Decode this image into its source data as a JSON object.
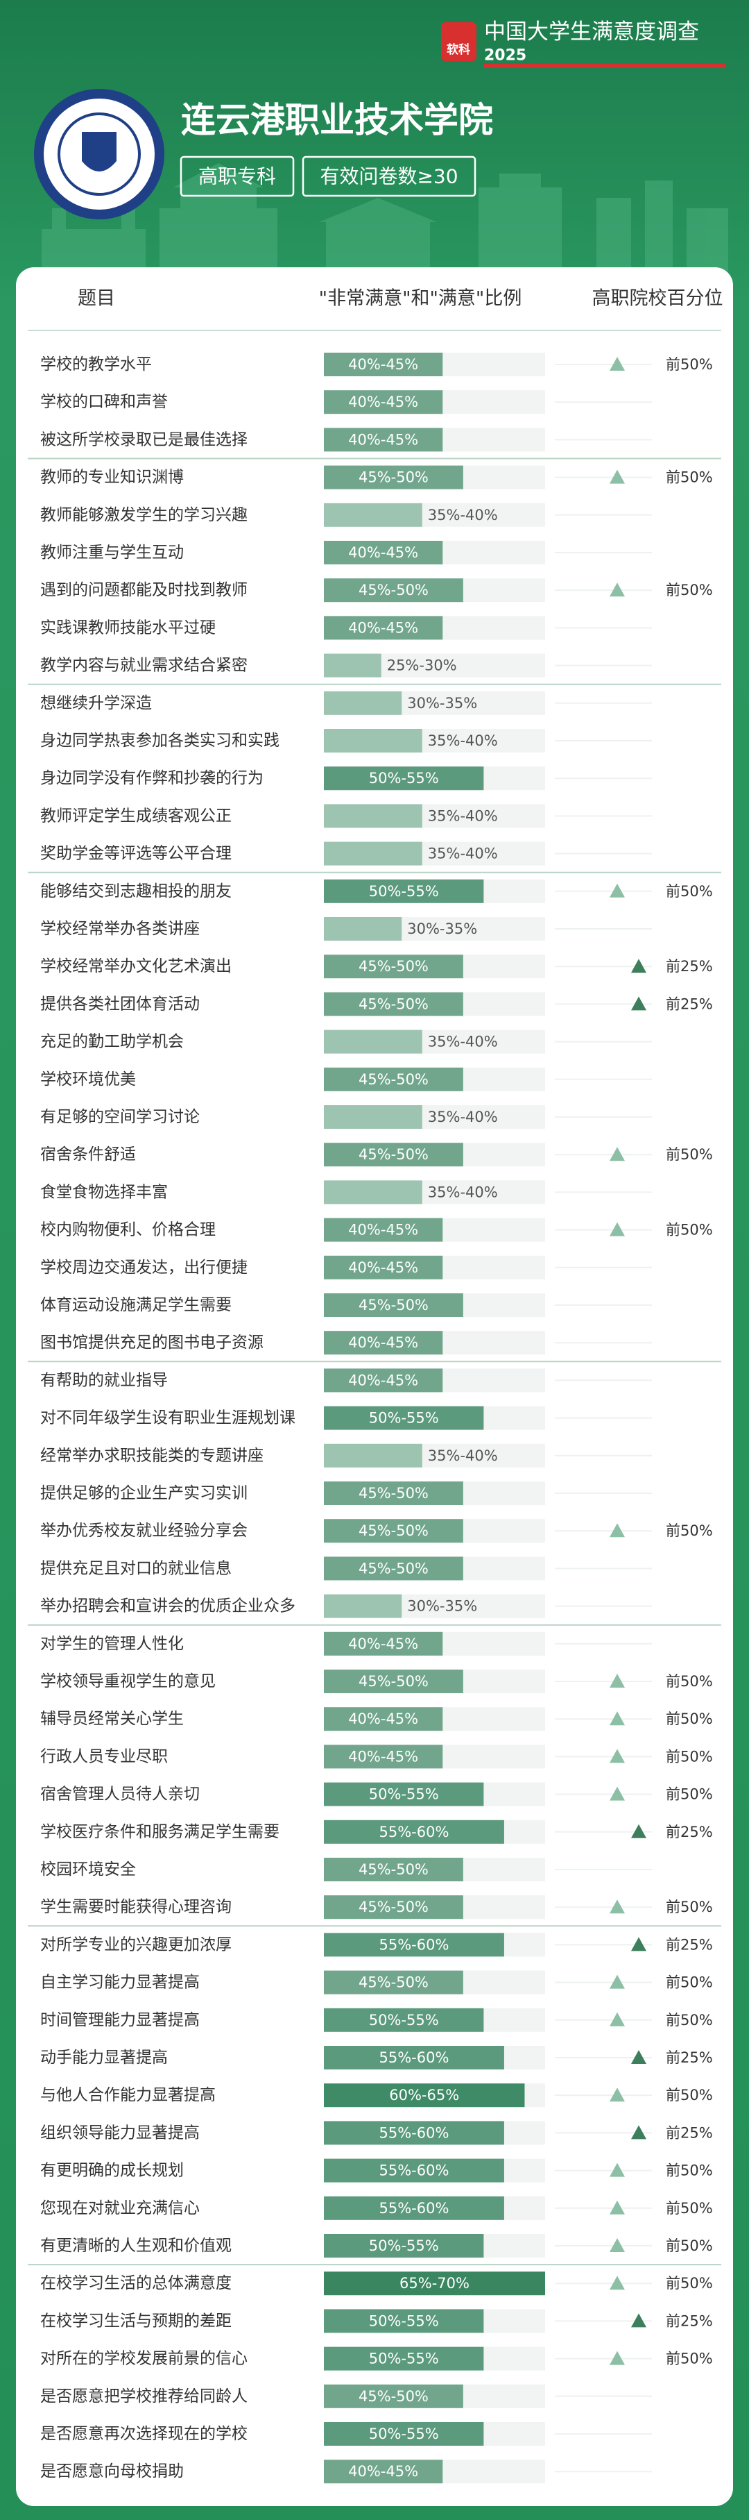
{
  "header": {
    "brand_icon": "软科",
    "survey": "中国大学生满意度调查",
    "year": "2025",
    "school": "连云港职业技术学院",
    "tags": [
      "高职专科",
      "有效问卷数≥30"
    ]
  },
  "table": {
    "columns": [
      "题目",
      "\"非常满意\"和\"满意\"比例",
      "高职院校百分位"
    ],
    "groups": [
      {
        "rows": [
          {
            "item": "学校的教学水平",
            "range": {
              "value": [
                40,
                45
              ],
              "label": "40%-45%"
            },
            "percentile": {
              "value": 50,
              "label": "前50%"
            }
          },
          {
            "item": "学校的口碑和声誉",
            "range": {
              "value": [
                40,
                45
              ],
              "label": "40%-45%"
            }
          },
          {
            "item": "被这所学校录取已是最佳选择",
            "range": {
              "value": [
                40,
                45
              ],
              "label": "40%-45%"
            }
          }
        ]
      },
      {
        "rows": [
          {
            "item": "教师的专业知识渊博",
            "range": {
              "value": [
                45,
                50
              ],
              "label": "45%-50%"
            },
            "percentile": {
              "value": 50,
              "label": "前50%"
            }
          },
          {
            "item": "教师能够激发学生的学习兴趣",
            "range": {
              "value": [
                35,
                40
              ],
              "label": "35%-40%"
            }
          },
          {
            "item": "教师注重与学生互动",
            "range": {
              "value": [
                40,
                45
              ],
              "label": "40%-45%"
            }
          },
          {
            "item": "遇到的问题都能及时找到教师",
            "range": {
              "value": [
                45,
                50
              ],
              "label": "45%-50%"
            },
            "percentile": {
              "value": 50,
              "label": "前50%"
            }
          },
          {
            "item": "实践课教师技能水平过硬",
            "range": {
              "value": [
                40,
                45
              ],
              "label": "40%-45%"
            }
          },
          {
            "item": "教学内容与就业需求结合紧密",
            "range": {
              "value": [
                25,
                30
              ],
              "label": "25%-30%"
            }
          }
        ]
      },
      {
        "rows": [
          {
            "item": "想继续升学深造",
            "range": {
              "value": [
                30,
                35
              ],
              "label": "30%-35%"
            }
          },
          {
            "item": "身边同学热衷参加各类实习和实践",
            "range": {
              "value": [
                35,
                40
              ],
              "label": "35%-40%"
            }
          },
          {
            "item": "身边同学没有作弊和抄袭的行为",
            "range": {
              "value": [
                50,
                55
              ],
              "label": "50%-55%"
            }
          },
          {
            "item": "教师评定学生成绩客观公正",
            "range": {
              "value": [
                35,
                40
              ],
              "label": "35%-40%"
            }
          },
          {
            "item": "奖助学金等评选等公平合理",
            "range": {
              "value": [
                35,
                40
              ],
              "label": "35%-40%"
            }
          }
        ]
      },
      {
        "rows": [
          {
            "item": "能够结交到志趣相投的朋友",
            "range": {
              "value": [
                50,
                55
              ],
              "label": "50%-55%"
            },
            "percentile": {
              "value": 50,
              "label": "前50%"
            }
          },
          {
            "item": "学校经常举办各类讲座",
            "range": {
              "value": [
                30,
                35
              ],
              "label": "30%-35%"
            }
          },
          {
            "item": "学校经常举办文化艺术演出",
            "range": {
              "value": [
                45,
                50
              ],
              "label": "45%-50%"
            },
            "percentile": {
              "value": 25,
              "label": "前25%"
            }
          },
          {
            "item": "提供各类社团体育活动",
            "range": {
              "value": [
                45,
                50
              ],
              "label": "45%-50%"
            },
            "percentile": {
              "value": 25,
              "label": "前25%"
            }
          },
          {
            "item": "充足的勤工助学机会",
            "range": {
              "value": [
                35,
                40
              ],
              "label": "35%-40%"
            }
          },
          {
            "item": "学校环境优美",
            "range": {
              "value": [
                45,
                50
              ],
              "label": "45%-50%"
            }
          },
          {
            "item": "有足够的空间学习讨论",
            "range": {
              "value": [
                35,
                40
              ],
              "label": "35%-40%"
            }
          },
          {
            "item": "宿舍条件舒适",
            "range": {
              "value": [
                45,
                50
              ],
              "label": "45%-50%"
            },
            "percentile": {
              "value": 50,
              "label": "前50%"
            }
          },
          {
            "item": "食堂食物选择丰富",
            "range": {
              "value": [
                35,
                40
              ],
              "label": "35%-40%"
            }
          },
          {
            "item": "校内购物便利、价格合理",
            "range": {
              "value": [
                40,
                45
              ],
              "label": "40%-45%"
            },
            "percentile": {
              "value": 50,
              "label": "前50%"
            }
          },
          {
            "item": "学校周边交通发达，出行便捷",
            "range": {
              "value": [
                40,
                45
              ],
              "label": "40%-45%"
            }
          },
          {
            "item": "体育运动设施满足学生需要",
            "range": {
              "value": [
                45,
                50
              ],
              "label": "45%-50%"
            }
          },
          {
            "item": "图书馆提供充足的图书电子资源",
            "range": {
              "value": [
                40,
                45
              ],
              "label": "40%-45%"
            }
          }
        ]
      },
      {
        "rows": [
          {
            "item": "有帮助的就业指导",
            "range": {
              "value": [
                40,
                45
              ],
              "label": "40%-45%"
            }
          },
          {
            "item": "对不同年级学生设有职业生涯规划课",
            "range": {
              "value": [
                50,
                55
              ],
              "label": "50%-55%"
            }
          },
          {
            "item": "经常举办求职技能类的专题讲座",
            "range": {
              "value": [
                35,
                40
              ],
              "label": "35%-40%"
            }
          },
          {
            "item": "提供足够的企业生产实习实训",
            "range": {
              "value": [
                45,
                50
              ],
              "label": "45%-50%"
            }
          },
          {
            "item": "举办优秀校友就业经验分享会",
            "range": {
              "value": [
                45,
                50
              ],
              "label": "45%-50%"
            },
            "percentile": {
              "value": 50,
              "label": "前50%"
            }
          },
          {
            "item": "提供充足且对口的就业信息",
            "range": {
              "value": [
                45,
                50
              ],
              "label": "45%-50%"
            }
          },
          {
            "item": "举办招聘会和宣讲会的优质企业众多",
            "range": {
              "value": [
                30,
                35
              ],
              "label": "30%-35%"
            }
          }
        ]
      },
      {
        "rows": [
          {
            "item": "对学生的管理人性化",
            "range": {
              "value": [
                40,
                45
              ],
              "label": "40%-45%"
            }
          },
          {
            "item": "学校领导重视学生的意见",
            "range": {
              "value": [
                45,
                50
              ],
              "label": "45%-50%"
            },
            "percentile": {
              "value": 50,
              "label": "前50%"
            }
          },
          {
            "item": "辅导员经常关心学生",
            "range": {
              "value": [
                40,
                45
              ],
              "label": "40%-45%"
            },
            "percentile": {
              "value": 50,
              "label": "前50%"
            }
          },
          {
            "item": "行政人员专业尽职",
            "range": {
              "value": [
                40,
                45
              ],
              "label": "40%-45%"
            },
            "percentile": {
              "value": 50,
              "label": "前50%"
            }
          },
          {
            "item": "宿舍管理人员待人亲切",
            "range": {
              "value": [
                50,
                55
              ],
              "label": "50%-55%"
            },
            "percentile": {
              "value": 50,
              "label": "前50%"
            }
          },
          {
            "item": "学校医疗条件和服务满足学生需要",
            "range": {
              "value": [
                55,
                60
              ],
              "label": "55%-60%"
            },
            "percentile": {
              "value": 25,
              "label": "前25%"
            }
          },
          {
            "item": "校园环境安全",
            "range": {
              "value": [
                45,
                50
              ],
              "label": "45%-50%"
            }
          },
          {
            "item": "学生需要时能获得心理咨询",
            "range": {
              "value": [
                45,
                50
              ],
              "label": "45%-50%"
            },
            "percentile": {
              "value": 50,
              "label": "前50%"
            }
          }
        ]
      },
      {
        "rows": [
          {
            "item": "对所学专业的兴趣更加浓厚",
            "range": {
              "value": [
                55,
                60
              ],
              "label": "55%-60%"
            },
            "percentile": {
              "value": 25,
              "label": "前25%"
            }
          },
          {
            "item": "自主学习能力显著提高",
            "range": {
              "value": [
                45,
                50
              ],
              "label": "45%-50%"
            },
            "percentile": {
              "value": 50,
              "label": "前50%"
            }
          },
          {
            "item": "时间管理能力显著提高",
            "range": {
              "value": [
                50,
                55
              ],
              "label": "50%-55%"
            },
            "percentile": {
              "value": 50,
              "label": "前50%"
            }
          },
          {
            "item": "动手能力显著提高",
            "range": {
              "value": [
                55,
                60
              ],
              "label": "55%-60%"
            },
            "percentile": {
              "value": 25,
              "label": "前25%"
            }
          },
          {
            "item": "与他人合作能力显著提高",
            "range": {
              "value": [
                60,
                65
              ],
              "label": "60%-65%"
            },
            "percentile": {
              "value": 50,
              "label": "前50%"
            }
          },
          {
            "item": "组织领导能力显著提高",
            "range": {
              "value": [
                55,
                60
              ],
              "label": "55%-60%"
            },
            "percentile": {
              "value": 25,
              "label": "前25%"
            }
          },
          {
            "item": "有更明确的成长规划",
            "range": {
              "value": [
                55,
                60
              ],
              "label": "55%-60%"
            },
            "percentile": {
              "value": 50,
              "label": "前50%"
            }
          },
          {
            "item": "您现在对就业充满信心",
            "range": {
              "value": [
                55,
                60
              ],
              "label": "55%-60%"
            },
            "percentile": {
              "value": 50,
              "label": "前50%"
            }
          },
          {
            "item": "有更清晰的人生观和价值观",
            "range": {
              "value": [
                50,
                55
              ],
              "label": "50%-55%"
            },
            "percentile": {
              "value": 50,
              "label": "前50%"
            }
          }
        ]
      },
      {
        "rows": [
          {
            "item": "在校学习生活的总体满意度",
            "range": {
              "value": [
                65,
                70
              ],
              "label": "65%-70%"
            },
            "percentile": {
              "value": 50,
              "label": "前50%"
            }
          },
          {
            "item": "在校学习生活与预期的差距",
            "range": {
              "value": [
                50,
                55
              ],
              "label": "50%-55%"
            },
            "percentile": {
              "value": 25,
              "label": "前25%"
            }
          },
          {
            "item": "对所在的学校发展前景的信心",
            "range": {
              "value": [
                50,
                55
              ],
              "label": "50%-55%"
            },
            "percentile": {
              "value": 50,
              "label": "前50%"
            }
          },
          {
            "item": "是否愿意把学校推荐给同龄人",
            "range": {
              "value": [
                45,
                50
              ],
              "label": "45%-50%"
            }
          },
          {
            "item": "是否愿意再次选择现在的学校",
            "range": {
              "value": [
                50,
                55
              ],
              "label": "50%-55%"
            }
          },
          {
            "item": "是否愿意向母校捐助",
            "range": {
              "value": [
                40,
                45
              ],
              "label": "40%-45%"
            }
          }
        ]
      }
    ]
  }
}
